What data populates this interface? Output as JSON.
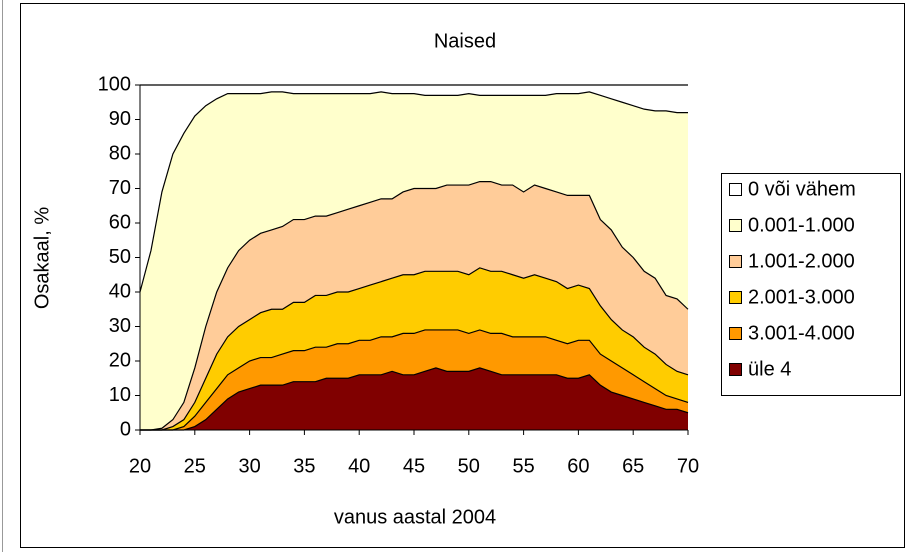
{
  "chart_data": {
    "type": "stacked_area",
    "title": "Naised",
    "xlabel": "vanus aastal 2004",
    "ylabel": "Osakaal, %",
    "x": [
      20,
      21,
      22,
      23,
      24,
      25,
      26,
      27,
      28,
      29,
      30,
      31,
      32,
      33,
      34,
      35,
      36,
      37,
      38,
      39,
      40,
      41,
      42,
      43,
      44,
      45,
      46,
      47,
      48,
      49,
      50,
      51,
      52,
      53,
      54,
      55,
      56,
      57,
      58,
      59,
      60,
      61,
      62,
      63,
      64,
      65,
      66,
      67,
      68,
      69,
      70
    ],
    "xlim": [
      20,
      70
    ],
    "xticks": [
      20,
      25,
      30,
      35,
      40,
      45,
      50,
      55,
      60,
      65,
      70
    ],
    "ylim": [
      0,
      100
    ],
    "yticks": [
      0,
      10,
      20,
      30,
      40,
      50,
      60,
      70,
      80,
      90,
      100
    ],
    "legend": "right",
    "series": [
      {
        "name": "0 või vähem",
        "color": "#ffffff",
        "values": [
          60,
          48,
          31,
          20,
          14,
          9,
          6,
          4,
          2.5,
          2.5,
          2.5,
          2.5,
          2,
          2,
          2.5,
          2.5,
          2.5,
          2.5,
          2.5,
          2.5,
          2.5,
          2.5,
          2,
          2.5,
          2.5,
          2.5,
          3,
          3,
          3,
          3,
          2.5,
          3,
          3,
          3,
          3,
          3,
          3,
          3,
          2.5,
          2.5,
          2.5,
          2,
          3,
          4,
          5,
          6,
          7,
          7.5,
          7.5,
          8,
          8
        ]
      },
      {
        "name": "0.001-1.000",
        "color": "#ffffcc",
        "values": [
          40,
          52,
          68.5,
          77,
          78,
          73,
          64,
          56,
          50.5,
          45.5,
          42.5,
          40.5,
          40,
          39,
          36.5,
          36.5,
          35.5,
          35.5,
          34.5,
          33.5,
          32.5,
          31.5,
          31,
          30.5,
          28.5,
          27.5,
          27,
          27,
          26,
          26,
          26.5,
          25,
          25,
          26,
          26,
          28,
          26,
          27,
          28.5,
          29.5,
          29.5,
          30,
          36,
          38,
          42,
          44,
          47,
          48.5,
          53.5,
          54,
          57
        ]
      },
      {
        "name": "1.001-2.000",
        "color": "#ffcc99",
        "values": [
          0,
          0,
          0.5,
          2,
          5,
          10,
          15,
          18,
          20,
          22,
          23,
          23,
          23,
          24,
          24,
          24,
          23,
          23,
          23,
          24,
          24,
          24,
          24,
          23,
          24,
          25,
          24,
          24,
          25,
          25,
          26,
          25,
          26,
          25,
          26,
          25,
          26,
          26,
          26,
          27,
          26,
          27,
          25,
          26,
          24,
          23,
          22,
          22,
          20,
          21,
          19
        ]
      },
      {
        "name": "2.001-3.000",
        "color": "#ffcc00",
        "values": [
          0,
          0,
          0,
          1,
          2,
          4,
          7,
          10,
          11,
          12,
          12,
          13,
          14,
          13,
          14,
          14,
          15,
          15,
          15,
          15,
          15,
          16,
          16,
          17,
          17,
          17,
          17,
          17,
          17,
          17,
          17,
          18,
          18,
          18,
          18,
          17,
          18,
          17,
          17,
          16,
          16,
          15,
          14,
          12,
          11,
          11,
          10,
          10,
          9,
          8,
          8
        ]
      },
      {
        "name": "3.001-4.000",
        "color": "#ff9900",
        "values": [
          0,
          0,
          0,
          0,
          1,
          3,
          5,
          6,
          7,
          7,
          8,
          8,
          8,
          9,
          9,
          9,
          10,
          9,
          10,
          10,
          10,
          10,
          11,
          10,
          12,
          12,
          12,
          11,
          12,
          12,
          11,
          11,
          11,
          12,
          11,
          11,
          11,
          11,
          10,
          10,
          11,
          10,
          9,
          9,
          8,
          7,
          6,
          5,
          4,
          3,
          3
        ]
      },
      {
        "name": "üle 4",
        "color": "#800000",
        "values": [
          0,
          0,
          0,
          0,
          0,
          1,
          3,
          6,
          9,
          11,
          12,
          13,
          13,
          13,
          14,
          14,
          14,
          15,
          15,
          15,
          16,
          16,
          16,
          17,
          16,
          16,
          17,
          18,
          17,
          17,
          17,
          18,
          17,
          16,
          16,
          16,
          16,
          16,
          16,
          15,
          15,
          16,
          13,
          11,
          10,
          9,
          8,
          7,
          6,
          6,
          5
        ]
      }
    ]
  }
}
